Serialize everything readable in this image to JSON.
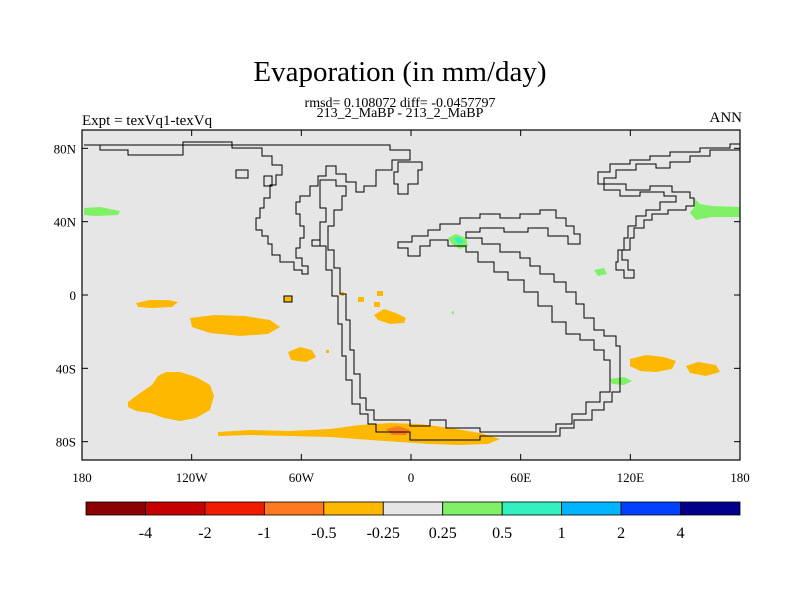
{
  "title": "Evaporation (in mm/day)",
  "subtitle_stats": "rmsd= 0.108072 diff= -0.0457797",
  "subtitle_case": "213_2_MaBP - 213_2_MaBP",
  "left_label": "Expt = texVq1-texVq",
  "right_label": "ANN",
  "map": {
    "lon_range": [
      -180,
      180
    ],
    "lat_range": [
      -90,
      90
    ],
    "x_ticks": [
      {
        "value": -180,
        "label": "180"
      },
      {
        "value": -120,
        "label": "120W"
      },
      {
        "value": -60,
        "label": "60W"
      },
      {
        "value": 0,
        "label": "0"
      },
      {
        "value": 60,
        "label": "60E"
      },
      {
        "value": 120,
        "label": "120E"
      },
      {
        "value": 180,
        "label": "180"
      }
    ],
    "y_ticks": [
      {
        "value": 80,
        "label": "80N"
      },
      {
        "value": 40,
        "label": "40N"
      },
      {
        "value": 0,
        "label": "0"
      },
      {
        "value": -40,
        "label": "40S"
      },
      {
        "value": -80,
        "label": "80S"
      }
    ],
    "background_color": "#e6e6e6"
  },
  "colorbar": {
    "colors": [
      "#8b0000",
      "#c40000",
      "#f01c00",
      "#ff7a1f",
      "#ffb800",
      "#e6e6e6",
      "#80f066",
      "#33f0c0",
      "#00b4ff",
      "#0040ff",
      "#00008b"
    ],
    "labels": [
      "-4",
      "-2",
      "-1",
      "-0.5",
      "-0.25",
      "0.25",
      "0.5",
      "1",
      "2",
      "4"
    ]
  },
  "field_colors": {
    "negative_light": "#ffb800",
    "negative_strong": "#ff7a1f",
    "positive_light": "#80f066",
    "positive_teal": "#33f0c0"
  }
}
